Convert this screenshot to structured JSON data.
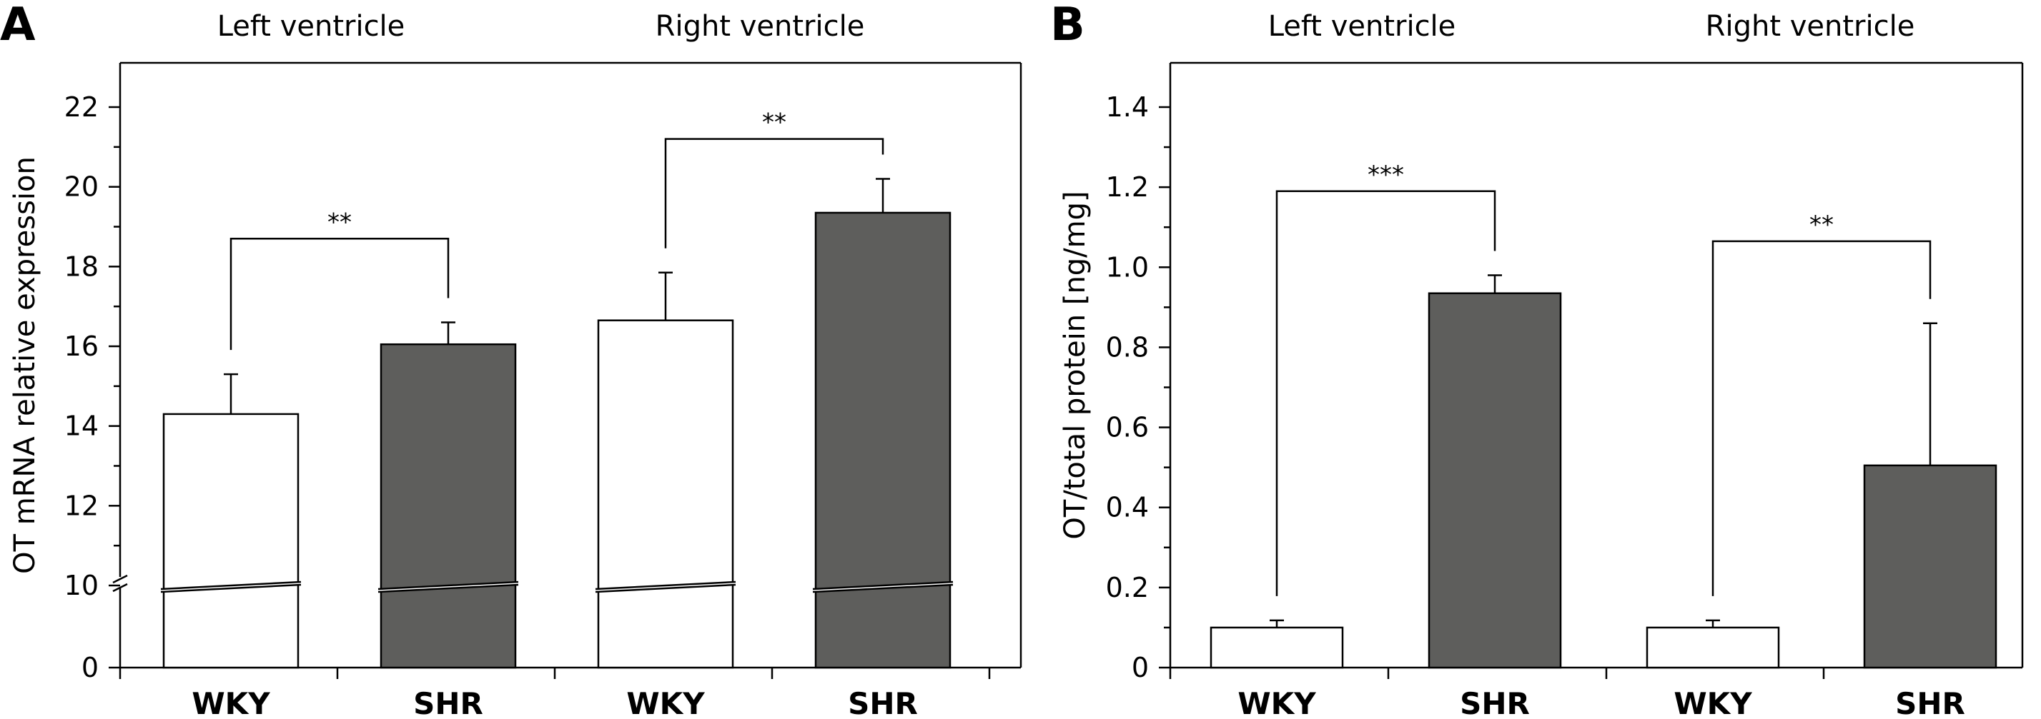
{
  "chart_data": [
    {
      "type": "bar",
      "panel_label": "A",
      "group_labels": [
        "Left ventricle",
        "Right ventricle"
      ],
      "categories": [
        "WKY",
        "SHR",
        "WKY",
        "SHR"
      ],
      "ylabel": "OT mRNA relative expression",
      "ylim": [
        0,
        23
      ],
      "axis_break": [
        0,
        10
      ],
      "yticks": [
        0,
        10,
        12,
        14,
        16,
        18,
        20,
        22
      ],
      "yticks_labels": [
        "0",
        "10",
        "12",
        "14",
        "16",
        "18",
        "20",
        "22"
      ],
      "values": [
        14.3,
        16.05,
        16.65,
        19.35
      ],
      "errors": [
        1.0,
        0.55,
        1.2,
        0.85
      ],
      "bar_colors": [
        "#ffffff",
        "#5e5e5c",
        "#ffffff",
        "#5e5e5c"
      ],
      "significance": [
        {
          "from": 0,
          "to": 1,
          "label": "**",
          "y": 18.7
        },
        {
          "from": 2,
          "to": 3,
          "label": "**",
          "y": 21.2
        }
      ]
    },
    {
      "type": "bar",
      "panel_label": "B",
      "group_labels": [
        "Left ventricle",
        "Right ventricle"
      ],
      "categories": [
        "WKY",
        "SHR",
        "WKY",
        "SHR"
      ],
      "ylabel": "OT/total protein [ng/mg]",
      "ylim": [
        0,
        1.52
      ],
      "yticks": [
        0,
        0.2,
        0.4,
        0.6,
        0.8,
        1.0,
        1.2,
        1.4
      ],
      "yticks_labels": [
        "0",
        "0.2",
        "0.4",
        "0.6",
        "0.8",
        "1.0",
        "1.2",
        "1.4"
      ],
      "values": [
        0.1,
        0.935,
        0.1,
        0.505
      ],
      "errors": [
        0.018,
        0.045,
        0.018,
        0.355
      ],
      "bar_colors": [
        "#ffffff",
        "#5e5e5c",
        "#ffffff",
        "#5e5e5c"
      ],
      "significance": [
        {
          "from": 0,
          "to": 1,
          "label": "***",
          "y": 1.19
        },
        {
          "from": 2,
          "to": 3,
          "label": "**",
          "y": 1.065
        }
      ]
    }
  ]
}
